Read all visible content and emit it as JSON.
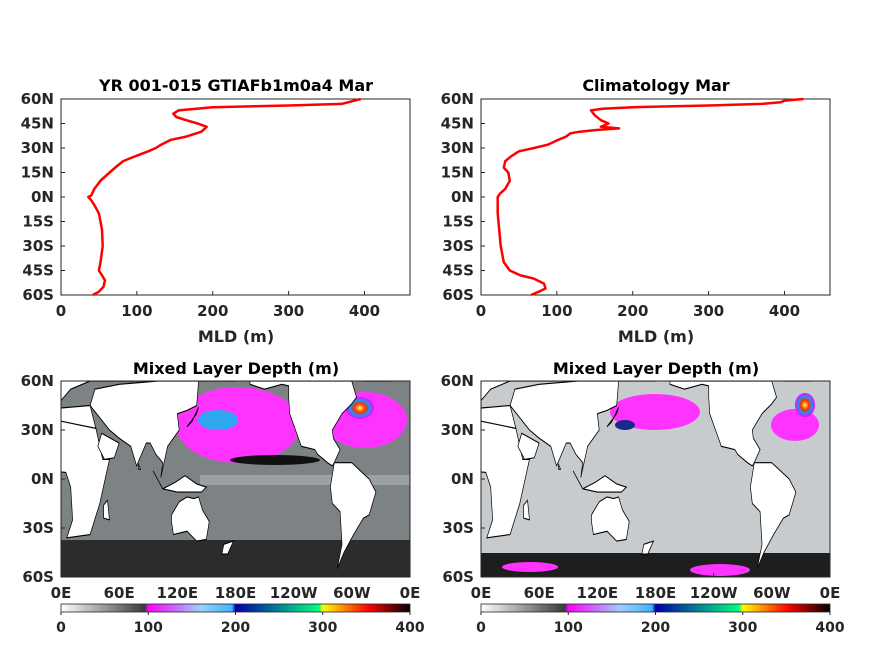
{
  "chart_data": [
    {
      "type": "line",
      "title": "YR 001-015 GTIAFb1m0a4 Mar",
      "xlabel": "MLD (m)",
      "ylabel": "",
      "xlim": [
        0,
        460
      ],
      "ylim": [
        -60,
        60
      ],
      "xticks": [
        "0",
        "100",
        "200",
        "300",
        "400"
      ],
      "yticks": [
        "60N",
        "45N",
        "30N",
        "15N",
        "0N",
        "15S",
        "30S",
        "45S",
        "60S"
      ],
      "series": [
        {
          "color": "#ff0000",
          "points": [
            [
              395,
              60
            ],
            [
              370,
              57
            ],
            [
              300,
              56
            ],
            [
              200,
              55
            ],
            [
              155,
              53
            ],
            [
              148,
              51
            ],
            [
              152,
              49
            ],
            [
              165,
              47
            ],
            [
              180,
              45
            ],
            [
              192,
              43
            ],
            [
              185,
              40
            ],
            [
              165,
              37
            ],
            [
              145,
              35
            ],
            [
              132,
              32
            ],
            [
              125,
              30
            ],
            [
              115,
              28
            ],
            [
              98,
              25
            ],
            [
              82,
              22
            ],
            [
              74,
              19
            ],
            [
              64,
              15
            ],
            [
              52,
              10
            ],
            [
              44,
              5
            ],
            [
              40,
              1
            ],
            [
              36,
              0
            ],
            [
              40,
              -2
            ],
            [
              44,
              -5
            ],
            [
              50,
              -10
            ],
            [
              54,
              -20
            ],
            [
              55,
              -30
            ],
            [
              52,
              -40
            ],
            [
              50,
              -45
            ],
            [
              54,
              -48
            ],
            [
              58,
              -51
            ],
            [
              56,
              -55
            ],
            [
              50,
              -58
            ],
            [
              42,
              -60
            ]
          ]
        }
      ]
    },
    {
      "type": "line",
      "title": "Climatology Mar",
      "xlabel": "MLD (m)",
      "ylabel": "",
      "xlim": [
        0,
        460
      ],
      "ylim": [
        -60,
        60
      ],
      "xticks": [
        "0",
        "100",
        "200",
        "300",
        "400"
      ],
      "yticks": [
        "60N",
        "45N",
        "30N",
        "15N",
        "0N",
        "15S",
        "30S",
        "45S",
        "60S"
      ],
      "series": [
        {
          "color": "#ff0000",
          "points": [
            [
              425,
              60
            ],
            [
              400,
              59
            ],
            [
              395,
              58
            ],
            [
              370,
              57
            ],
            [
              300,
              56
            ],
            [
              200,
              55
            ],
            [
              160,
              54
            ],
            [
              145,
              53
            ],
            [
              150,
              50
            ],
            [
              158,
              47
            ],
            [
              168,
              45
            ],
            [
              158,
              43
            ],
            [
              182,
              42
            ],
            [
              152,
              41
            ],
            [
              130,
              40
            ],
            [
              118,
              39
            ],
            [
              112,
              37
            ],
            [
              102,
              35
            ],
            [
              88,
              32
            ],
            [
              70,
              30
            ],
            [
              50,
              28
            ],
            [
              40,
              25
            ],
            [
              32,
              22
            ],
            [
              30,
              18
            ],
            [
              36,
              15
            ],
            [
              38,
              10
            ],
            [
              32,
              5
            ],
            [
              25,
              2
            ],
            [
              22,
              0
            ],
            [
              22,
              -10
            ],
            [
              24,
              -20
            ],
            [
              26,
              -30
            ],
            [
              30,
              -40
            ],
            [
              38,
              -45
            ],
            [
              52,
              -48
            ],
            [
              70,
              -50
            ],
            [
              83,
              -53
            ],
            [
              85,
              -56
            ],
            [
              76,
              -58
            ],
            [
              66,
              -60
            ]
          ]
        }
      ]
    },
    {
      "type": "heatmap",
      "title": "Mixed Layer Depth (m)",
      "xticks": [
        "0E",
        "60E",
        "120E",
        "180E",
        "120W",
        "60W",
        "0E"
      ],
      "yticks": [
        "60N",
        "30N",
        "0N",
        "30S",
        "60S"
      ],
      "colorbar": {
        "ticks": [
          "0",
          "100",
          "200",
          "300",
          "400"
        ],
        "range": [
          0,
          400
        ],
        "stops": [
          "#ffffff",
          "#3a3a3a",
          "#ff00ff",
          "#3cb4ff",
          "#0000aa",
          "#00ff80",
          "#ffff00",
          "#ff0000",
          "#000000"
        ]
      }
    },
    {
      "type": "heatmap",
      "title": "Mixed Layer Depth (m)",
      "xticks": [
        "0E",
        "60E",
        "120E",
        "180E",
        "120W",
        "60W",
        "0E"
      ],
      "yticks": [
        "60N",
        "30N",
        "0N",
        "30S",
        "60S"
      ],
      "colorbar": {
        "ticks": [
          "0",
          "100",
          "200",
          "300",
          "400"
        ],
        "range": [
          0,
          400
        ],
        "stops": [
          "#ffffff",
          "#3a3a3a",
          "#ff00ff",
          "#3cb4ff",
          "#0000aa",
          "#00ff80",
          "#ffff00",
          "#ff0000",
          "#000000"
        ]
      }
    }
  ]
}
